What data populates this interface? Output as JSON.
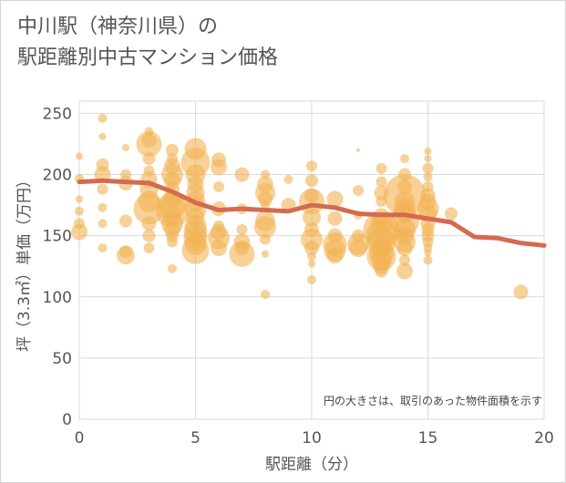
{
  "chart_data": {
    "type": "scatter",
    "title_lines": [
      "中川駅（神奈川県）の",
      "駅距離別中古マンション価格"
    ],
    "xlabel": "駅距離（分）",
    "ylabel": "坪（3.3㎡）単価（万円）",
    "xlim": [
      0,
      20
    ],
    "ylim": [
      0,
      260
    ],
    "x_ticks": [
      "0",
      "5",
      "10",
      "15",
      "20"
    ],
    "y_ticks": [
      "0",
      "50",
      "100",
      "150",
      "200",
      "250"
    ],
    "x_tick_values": [
      0,
      5,
      10,
      15,
      20
    ],
    "y_tick_values": [
      0,
      50,
      100,
      150,
      200,
      250
    ],
    "grid": true,
    "note": "円の大きさは、取引のあった物件面積を示す",
    "colors": {
      "bubble": "#f1b354",
      "trend": "#d46a50",
      "grid": "#d6dbe0",
      "text": "#555555"
    },
    "series": [
      {
        "type": "bubble",
        "points": [
          [
            0,
            215,
            4
          ],
          [
            0,
            197,
            5
          ],
          [
            0,
            180,
            4
          ],
          [
            0,
            170,
            5
          ],
          [
            0,
            160,
            6
          ],
          [
            0,
            153,
            9
          ],
          [
            1,
            246,
            5
          ],
          [
            1,
            231,
            4
          ],
          [
            1,
            208,
            7
          ],
          [
            1,
            200,
            9
          ],
          [
            1,
            188,
            6
          ],
          [
            1,
            173,
            5
          ],
          [
            1,
            160,
            5
          ],
          [
            1,
            140,
            5
          ],
          [
            2,
            222,
            4
          ],
          [
            2,
            200,
            6
          ],
          [
            2,
            193,
            8
          ],
          [
            2,
            162,
            7
          ],
          [
            2,
            137,
            7
          ],
          [
            2,
            134,
            10
          ],
          [
            3,
            235,
            5
          ],
          [
            3,
            228,
            8
          ],
          [
            3,
            225,
            14
          ],
          [
            3,
            213,
            7
          ],
          [
            3,
            203,
            6
          ],
          [
            3,
            196,
            9
          ],
          [
            3,
            188,
            10
          ],
          [
            3,
            178,
            12
          ],
          [
            3,
            172,
            17
          ],
          [
            3,
            160,
            8
          ],
          [
            3,
            150,
            7
          ],
          [
            3,
            140,
            6
          ],
          [
            4,
            220,
            7
          ],
          [
            4,
            213,
            6
          ],
          [
            4,
            207,
            9
          ],
          [
            4,
            200,
            12
          ],
          [
            4,
            195,
            9
          ],
          [
            4,
            188,
            8
          ],
          [
            4,
            180,
            10
          ],
          [
            4,
            175,
            15
          ],
          [
            4,
            170,
            18
          ],
          [
            4,
            166,
            10
          ],
          [
            4,
            160,
            12
          ],
          [
            4,
            155,
            9
          ],
          [
            4,
            150,
            7
          ],
          [
            4,
            145,
            6
          ],
          [
            4,
            123,
            5
          ],
          [
            5,
            221,
            12
          ],
          [
            5,
            210,
            16
          ],
          [
            5,
            200,
            11
          ],
          [
            5,
            192,
            9
          ],
          [
            5,
            185,
            10
          ],
          [
            5,
            178,
            11
          ],
          [
            5,
            172,
            12
          ],
          [
            5,
            165,
            10
          ],
          [
            5,
            158,
            12
          ],
          [
            5,
            153,
            13
          ],
          [
            5,
            148,
            13
          ],
          [
            5,
            143,
            12
          ],
          [
            5,
            138,
            15
          ],
          [
            6,
            212,
            8
          ],
          [
            6,
            206,
            9
          ],
          [
            6,
            190,
            6
          ],
          [
            6,
            172,
            8
          ],
          [
            6,
            158,
            6
          ],
          [
            6,
            153,
            9
          ],
          [
            6,
            148,
            12
          ],
          [
            6,
            140,
            9
          ],
          [
            7,
            200,
            8
          ],
          [
            7,
            172,
            6
          ],
          [
            7,
            155,
            6
          ],
          [
            7,
            145,
            9
          ],
          [
            7,
            140,
            8
          ],
          [
            7,
            135,
            14
          ],
          [
            8,
            200,
            5
          ],
          [
            8,
            192,
            9
          ],
          [
            8,
            185,
            11
          ],
          [
            8,
            180,
            8
          ],
          [
            8,
            175,
            5
          ],
          [
            8,
            162,
            11
          ],
          [
            8,
            157,
            12
          ],
          [
            8,
            147,
            6
          ],
          [
            8,
            135,
            4
          ],
          [
            8,
            102,
            5
          ],
          [
            9,
            196,
            5
          ],
          [
            9,
            175,
            8
          ],
          [
            10,
            207,
            6
          ],
          [
            10,
            195,
            7
          ],
          [
            10,
            183,
            8
          ],
          [
            10,
            178,
            14
          ],
          [
            10,
            165,
            10
          ],
          [
            10,
            155,
            8
          ],
          [
            10,
            147,
            12
          ],
          [
            10,
            140,
            8
          ],
          [
            10,
            133,
            5
          ],
          [
            10,
            127,
            4
          ],
          [
            10,
            114,
            5
          ],
          [
            11,
            180,
            9
          ],
          [
            11,
            164,
            8
          ],
          [
            11,
            150,
            8
          ],
          [
            11,
            143,
            13
          ],
          [
            11,
            138,
            12
          ],
          [
            11,
            134,
            9
          ],
          [
            12,
            220,
            2
          ],
          [
            12,
            187,
            6
          ],
          [
            12,
            167,
            5
          ],
          [
            12,
            150,
            7
          ],
          [
            12,
            143,
            12
          ],
          [
            12,
            140,
            10
          ],
          [
            13,
            205,
            6
          ],
          [
            13,
            194,
            6
          ],
          [
            13,
            185,
            8
          ],
          [
            13,
            178,
            6
          ],
          [
            13,
            165,
            10
          ],
          [
            13,
            160,
            12
          ],
          [
            13,
            155,
            20
          ],
          [
            13,
            150,
            17
          ],
          [
            13,
            145,
            16
          ],
          [
            13,
            140,
            10
          ],
          [
            13,
            135,
            13
          ],
          [
            13,
            133,
            16
          ],
          [
            13,
            130,
            11
          ],
          [
            13,
            125,
            9
          ],
          [
            13,
            121,
            7
          ],
          [
            14,
            213,
            5
          ],
          [
            14,
            200,
            7
          ],
          [
            14,
            190,
            8
          ],
          [
            14,
            183,
            23
          ],
          [
            14,
            178,
            11
          ],
          [
            14,
            172,
            12
          ],
          [
            14,
            168,
            10
          ],
          [
            14,
            162,
            16
          ],
          [
            14,
            155,
            12
          ],
          [
            14,
            150,
            10
          ],
          [
            14,
            145,
            12
          ],
          [
            14,
            140,
            9
          ],
          [
            14,
            130,
            6
          ],
          [
            14,
            121,
            9
          ],
          [
            15,
            219,
            4
          ],
          [
            15,
            213,
            4
          ],
          [
            15,
            205,
            6
          ],
          [
            15,
            198,
            5
          ],
          [
            15,
            190,
            6
          ],
          [
            15,
            183,
            8
          ],
          [
            15,
            178,
            9
          ],
          [
            15,
            172,
            12
          ],
          [
            15,
            168,
            10
          ],
          [
            15,
            160,
            8
          ],
          [
            15,
            155,
            7
          ],
          [
            15,
            150,
            7
          ],
          [
            15,
            145,
            6
          ],
          [
            15,
            140,
            5
          ],
          [
            15,
            136,
            4
          ],
          [
            15,
            130,
            5
          ],
          [
            16,
            168,
            7
          ],
          [
            19,
            104,
            8
          ]
        ]
      },
      {
        "type": "line",
        "points": [
          [
            0,
            194
          ],
          [
            1,
            195
          ],
          [
            2,
            194
          ],
          [
            3,
            193
          ],
          [
            4,
            186
          ],
          [
            5,
            177
          ],
          [
            6,
            171
          ],
          [
            7,
            172
          ],
          [
            8,
            171
          ],
          [
            9,
            170
          ],
          [
            10,
            175
          ],
          [
            11,
            173
          ],
          [
            12,
            168
          ],
          [
            13,
            167
          ],
          [
            14,
            167
          ],
          [
            15,
            164
          ],
          [
            16,
            161
          ],
          [
            17,
            149
          ],
          [
            18,
            148
          ],
          [
            19,
            144
          ],
          [
            20,
            142
          ]
        ]
      }
    ]
  }
}
